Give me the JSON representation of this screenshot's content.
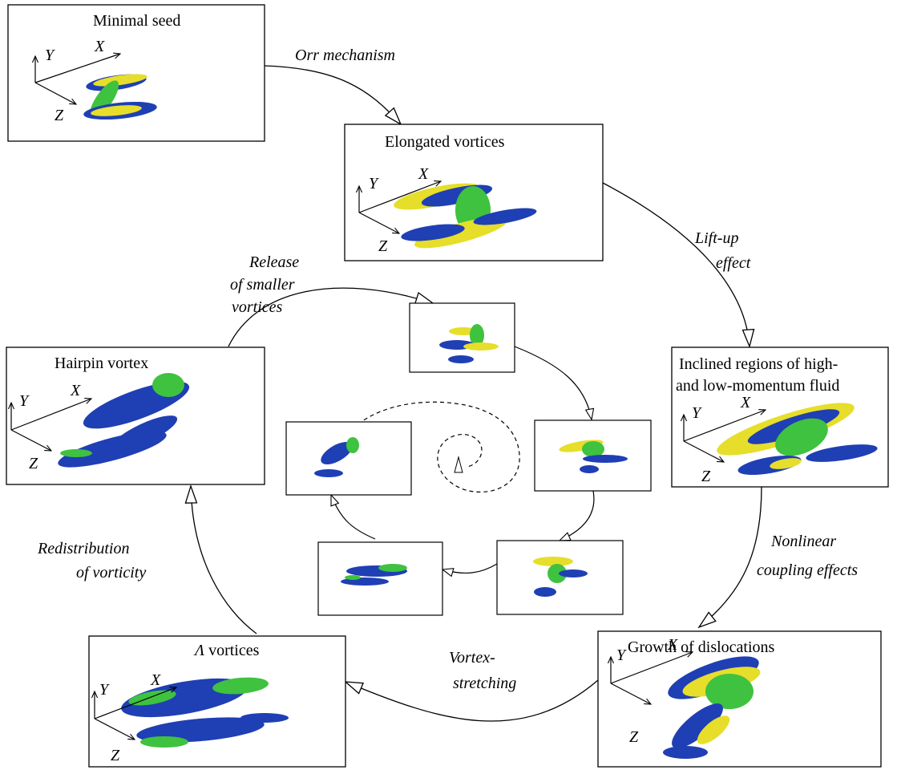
{
  "stages": {
    "minimal_seed": {
      "title": "Minimal seed"
    },
    "elongated_vortices": {
      "title": "Elongated vortices"
    },
    "inclined_regions": {
      "title_line1": "Inclined regions of high-",
      "title_line2": "and low-momentum fluid"
    },
    "growth_dislocations": {
      "title": "Growth of dislocations"
    },
    "lambda_vortices": {
      "title_symbol": "Λ",
      "title_rest": " vortices"
    },
    "hairpin_vortex": {
      "title": "Hairpin vortex"
    }
  },
  "axes": {
    "x": "X",
    "y": "Y",
    "z": "Z"
  },
  "processes": {
    "orr": "Orr mechanism",
    "liftup_line1": "Lift-up",
    "liftup_line2": "effect",
    "nonlinear_line1": "Nonlinear",
    "nonlinear_line2": "coupling effects",
    "vortex_line1": "Vortex-",
    "vortex_line2": "stretching",
    "redistribution_line1": "Redistribution",
    "redistribution_line2": "of vorticity",
    "release_line1": "Release",
    "release_line2": "of smaller",
    "release_line3": "vortices"
  },
  "colors": {
    "blue": "#1f3fb4",
    "green": "#3fc23f",
    "yellow": "#e6de2a",
    "stroke": "#000000"
  }
}
